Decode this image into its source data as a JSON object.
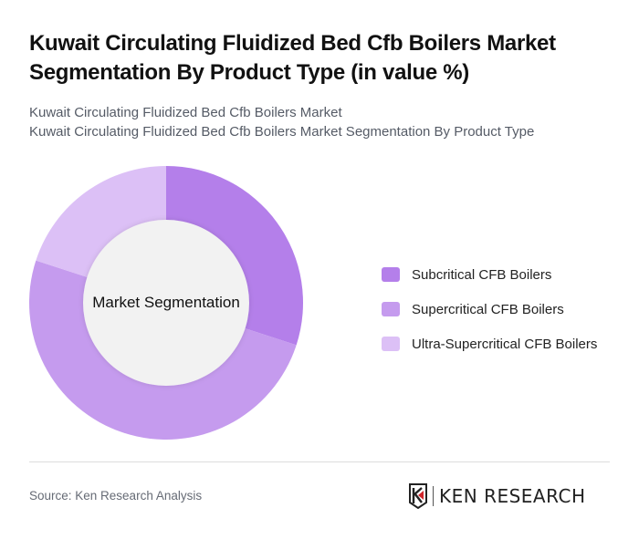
{
  "header": {
    "title": "Kuwait Circulating Fluidized Bed Cfb Boilers Market Segmentation By Product Type (in value %)",
    "subtitle_line1": "Kuwait Circulating Fluidized Bed Cfb Boilers Market",
    "subtitle_line2": "Kuwait Circulating Fluidized Bed Cfb Boilers Market Segmentation By Product Type"
  },
  "chart_data": {
    "type": "pie",
    "variant": "donut",
    "title": "Kuwait Circulating Fluidized Bed Cfb Boilers Market Segmentation By Product Type (in value %)",
    "center_label": "Market Segmentation",
    "categories": [
      "Subcritical CFB Boilers",
      "Supercritical CFB Boilers",
      "Ultra-Supercritical CFB Boilers"
    ],
    "values": [
      30,
      50,
      20
    ],
    "colors": [
      "#b47fea",
      "#c59bee",
      "#dcc0f6"
    ],
    "legend_position": "right"
  },
  "legend": {
    "items": [
      {
        "label": "Subcritical CFB Boilers",
        "color": "#b47fea"
      },
      {
        "label": "Supercritical CFB Boilers",
        "color": "#c59bee"
      },
      {
        "label": "Ultra-Supercritical CFB Boilers",
        "color": "#dcc0f6"
      }
    ]
  },
  "footer": {
    "source": "Source: Ken Research Analysis",
    "logo_text": "KEN RESEARCH"
  }
}
